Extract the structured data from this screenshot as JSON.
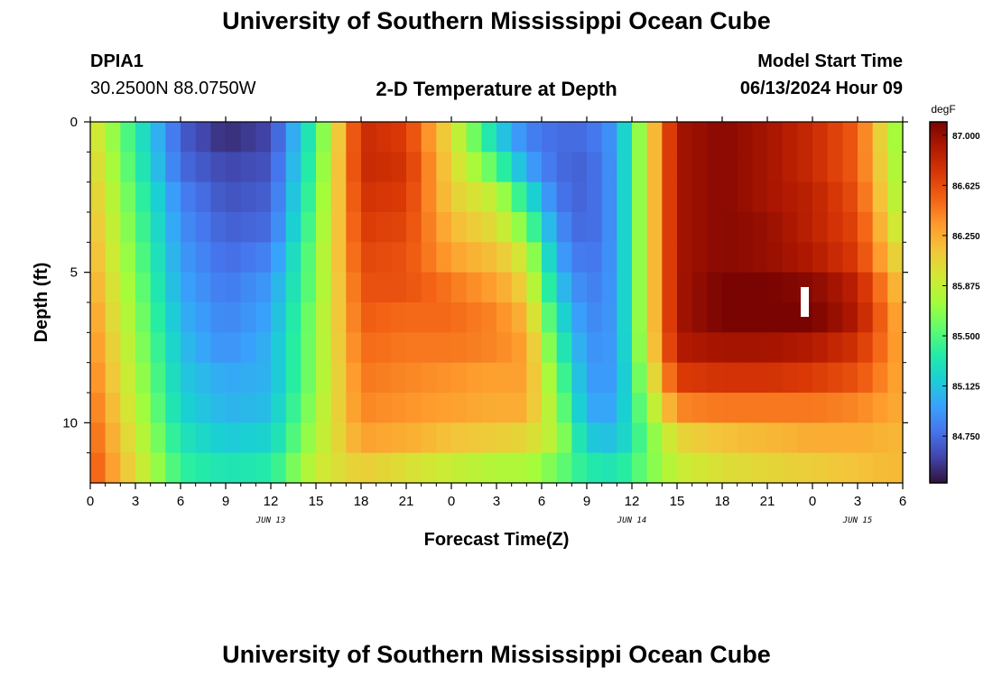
{
  "header": {
    "top_title": "University of Southern Mississippi Ocean Cube",
    "station_id": "DPIA1",
    "coords": "30.2500N  88.0750W",
    "plot_title": "2-D Temperature at Depth",
    "model_start_label": "Model Start Time",
    "model_start_value": "06/13/2024 Hour 09"
  },
  "footer": {
    "bottom_title": "University of Southern Mississippi Ocean Cube"
  },
  "chart_data": {
    "type": "heatmap",
    "title": "2-D Temperature at Depth",
    "xlabel": "Forecast Time(Z)",
    "ylabel": "Depth (ft)",
    "x_unit": "hours since 06/13/2024 00Z",
    "xlim": [
      0,
      54
    ],
    "ylim": [
      0,
      12
    ],
    "y_inverted": true,
    "x_ticks": [
      "0",
      "3",
      "6",
      "9",
      "12",
      "15",
      "18",
      "21",
      "0",
      "3",
      "6",
      "9",
      "12",
      "15",
      "18",
      "21",
      "0",
      "3",
      "6"
    ],
    "y_ticks": [
      "0",
      "5",
      "10"
    ],
    "date_labels": [
      {
        "text": "JUN 13",
        "x": 12
      },
      {
        "text": "JUN 14",
        "x": 36
      },
      {
        "text": "JUN 15",
        "x": 51
      }
    ],
    "colorbar": {
      "unit": "degF",
      "min": 84.4,
      "max": 87.1,
      "ticks": [
        "87.000",
        "86.625",
        "86.250",
        "85.875",
        "85.500",
        "85.125",
        "84.750"
      ],
      "colors": [
        "#30123b",
        "#4145ab",
        "#4675ed",
        "#39a2fc",
        "#1bcfd4",
        "#24eca6",
        "#61fc6c",
        "#a4fc3b",
        "#d1e834",
        "#f3c63a",
        "#fe9b2d",
        "#f36315",
        "#d93806",
        "#b11901",
        "#7a0402"
      ]
    },
    "depth_levels_ft": [
      0.5,
      1.5,
      2.5,
      3.5,
      4.5,
      5.5,
      6.5,
      7.5,
      8.5,
      9.5,
      10.5,
      11.5
    ],
    "time_hours": [
      0,
      6,
      9,
      12,
      15,
      18,
      21,
      24,
      27,
      29,
      31,
      33,
      35,
      39,
      42,
      45,
      48,
      51,
      54
    ],
    "temperature_degF": [
      [
        86.05,
        84.7,
        84.5,
        84.6,
        85.45,
        86.8,
        86.7,
        86.0,
        85.2,
        84.85,
        84.75,
        84.75,
        84.95,
        86.95,
        87.05,
        86.95,
        86.8,
        86.55,
        85.6
      ],
      [
        86.1,
        84.75,
        84.6,
        84.65,
        85.5,
        86.8,
        86.75,
        86.05,
        85.5,
        85.0,
        84.75,
        84.7,
        84.95,
        86.95,
        87.05,
        86.95,
        86.8,
        86.55,
        85.65
      ],
      [
        86.15,
        84.85,
        84.65,
        84.7,
        85.55,
        86.75,
        86.7,
        86.1,
        85.85,
        85.3,
        84.8,
        84.7,
        84.95,
        86.95,
        87.05,
        86.95,
        86.85,
        86.6,
        85.7
      ],
      [
        86.2,
        84.9,
        84.7,
        84.75,
        85.6,
        86.7,
        86.65,
        86.2,
        86.0,
        85.6,
        84.9,
        84.7,
        84.95,
        86.95,
        87.05,
        87.0,
        86.85,
        86.65,
        85.8
      ],
      [
        86.25,
        84.95,
        84.75,
        84.85,
        85.65,
        86.65,
        86.6,
        86.3,
        86.15,
        85.9,
        85.0,
        84.75,
        84.95,
        86.95,
        87.05,
        87.0,
        86.9,
        86.7,
        85.95
      ],
      [
        86.3,
        85.0,
        84.8,
        84.95,
        85.65,
        86.6,
        86.6,
        86.45,
        86.3,
        86.05,
        85.15,
        84.8,
        84.95,
        86.95,
        87.1,
        87.1,
        87.05,
        86.85,
        86.1
      ],
      [
        86.35,
        85.05,
        84.85,
        85.0,
        85.7,
        86.55,
        86.5,
        86.5,
        86.4,
        86.2,
        85.3,
        84.85,
        84.95,
        86.95,
        87.1,
        87.1,
        87.1,
        86.9,
        86.2
      ],
      [
        86.4,
        85.1,
        84.9,
        85.05,
        85.7,
        86.5,
        86.45,
        86.45,
        86.4,
        86.3,
        85.45,
        84.9,
        84.95,
        86.9,
        86.95,
        86.95,
        86.9,
        86.75,
        86.25
      ],
      [
        86.45,
        85.15,
        85.0,
        85.05,
        85.7,
        86.45,
        86.4,
        86.35,
        86.3,
        86.3,
        85.6,
        84.95,
        84.95,
        86.7,
        86.75,
        86.75,
        86.7,
        86.6,
        86.25
      ],
      [
        86.5,
        85.2,
        85.05,
        85.1,
        85.75,
        86.4,
        86.35,
        86.3,
        86.25,
        86.25,
        85.7,
        85.0,
        85.0,
        86.4,
        86.45,
        86.45,
        86.45,
        86.4,
        86.25
      ],
      [
        86.55,
        85.3,
        85.15,
        85.2,
        85.8,
        86.3,
        86.25,
        86.15,
        86.1,
        86.05,
        85.8,
        85.15,
        85.1,
        86.05,
        86.15,
        86.2,
        86.25,
        86.25,
        86.2
      ],
      [
        86.6,
        85.4,
        85.3,
        85.35,
        85.9,
        86.1,
        86.0,
        85.9,
        85.8,
        85.8,
        85.6,
        85.35,
        85.3,
        85.9,
        86.0,
        86.05,
        86.1,
        86.15,
        86.2
      ]
    ]
  }
}
